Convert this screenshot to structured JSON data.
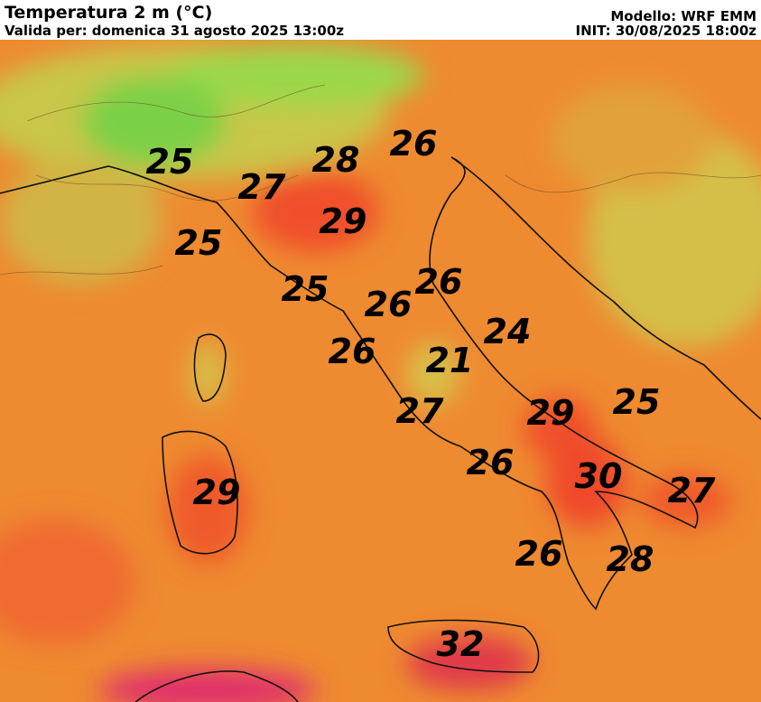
{
  "header": {
    "title": "Temperatura 2 m (°C)",
    "valid": "Valida per: domenica 31 agosto 2025 13:00z",
    "model": "Modello: WRF EMM",
    "init": "INIT: 30/08/2025 18:00z"
  },
  "labels": [
    "25",
    "28",
    "26",
    "27",
    "29",
    "25",
    "25",
    "26",
    "26",
    "24",
    "26",
    "21",
    "27",
    "29",
    "25",
    "26",
    "30",
    "27",
    "29",
    "26",
    "28",
    "32"
  ]
}
